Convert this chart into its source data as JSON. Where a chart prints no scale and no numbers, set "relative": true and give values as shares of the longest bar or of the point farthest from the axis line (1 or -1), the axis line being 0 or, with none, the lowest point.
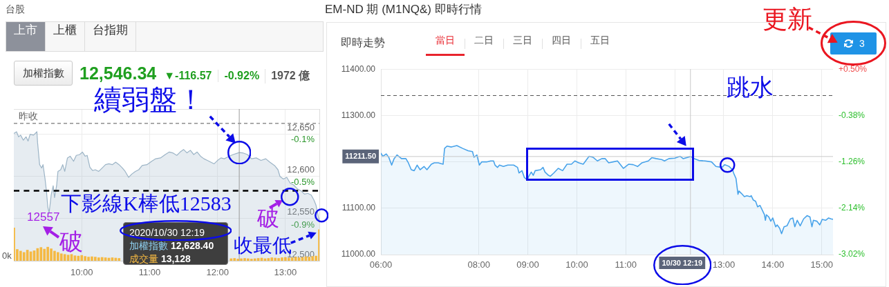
{
  "chart_data": [
    {
      "type": "area",
      "x": [
        9.0,
        9.04,
        9.07,
        9.1,
        9.14,
        9.18,
        9.21,
        9.24,
        9.29,
        9.34,
        9.35,
        9.38,
        9.41,
        9.43,
        9.46,
        9.48,
        9.5,
        9.52,
        9.55,
        9.58,
        9.6,
        9.63,
        9.65,
        9.69,
        9.72,
        9.75,
        9.79,
        9.83,
        9.88,
        9.92,
        9.97,
        10.01,
        10.05,
        10.08,
        10.12,
        10.16,
        10.2,
        10.25,
        10.3,
        10.35,
        10.4,
        10.45,
        10.5,
        10.55,
        10.6,
        10.64,
        10.69,
        10.74,
        10.79,
        10.84,
        10.89,
        10.96,
        11.03,
        11.09,
        11.16,
        11.23,
        11.29,
        11.34,
        11.4,
        11.45,
        11.5,
        11.55,
        11.6,
        11.65,
        11.7,
        11.75,
        11.8,
        11.85,
        11.9,
        11.95,
        12.0,
        12.05,
        12.1,
        12.17,
        12.23,
        12.32,
        12.37,
        12.44,
        12.5,
        12.57,
        12.64,
        12.71,
        12.77,
        12.84,
        12.89,
        12.92,
        12.97,
        13.02,
        13.07,
        13.12,
        13.18,
        13.23,
        13.28,
        13.33,
        13.38,
        13.42,
        13.45,
        13.5
      ],
      "values": [
        12651,
        12653,
        12647,
        12649,
        12643,
        12647,
        12642,
        12650,
        12649,
        12653,
        12640,
        12614,
        12610,
        12614,
        12597,
        12583,
        12564,
        12557,
        12578,
        12589,
        12575,
        12589,
        12606,
        12608,
        12614,
        12606,
        12622,
        12624,
        12618,
        12625,
        12626,
        12629,
        12624,
        12625,
        12611,
        12607,
        12608,
        12606,
        12610,
        12614,
        12615,
        12614,
        12617,
        12614,
        12610,
        12606,
        12599,
        12603,
        12606,
        12608,
        12613,
        12614,
        12618,
        12621,
        12622,
        12626,
        12629,
        12628,
        12625,
        12629,
        12632,
        12628,
        12631,
        12626,
        12629,
        12624,
        12621,
        12619,
        12617,
        12615,
        12619,
        12622,
        12621,
        12624,
        12626,
        12628.4,
        12628,
        12626,
        12621,
        12622,
        12619,
        12621,
        12617,
        12613,
        12608,
        12600,
        12597,
        12599,
        12592,
        12590,
        12585,
        12583,
        12579,
        12580,
        12578,
        12572,
        12566,
        12546.34
      ],
      "color": "#9cb4c6",
      "xlim": [
        9,
        13.5
      ],
      "xticks": [
        {
          "value": 10,
          "label": "10:00"
        },
        {
          "value": 11,
          "label": "11:00"
        },
        {
          "value": 12,
          "label": "12:00"
        },
        {
          "value": 13,
          "label": "13:00"
        }
      ],
      "ylim": [
        12500,
        12680
      ],
      "yticks": [
        {
          "value": 12500,
          "label": "12,500"
        },
        {
          "value": 12550,
          "label": "12,550"
        },
        {
          "value": 12600,
          "label": "12,600"
        },
        {
          "value": 12650,
          "label": "12,650"
        }
      ],
      "y2lim": [
        -1.29,
        0.13
      ],
      "y2ticks": [
        {
          "value": -0.9,
          "label": "-0.9%"
        },
        {
          "value": -0.5,
          "label": "-0.5%"
        },
        {
          "value": -0.1,
          "label": "-0.1%"
        }
      ],
      "grid": true,
      "ref_lines": [
        {
          "axis": "y",
          "value": 12662.91,
          "label": "昨收",
          "line_style": "dashed",
          "color": "#555555"
        },
        {
          "axis": "y",
          "value": 12583,
          "label": "下影線K棒低12583",
          "line_style": "dashed",
          "color": "#000000"
        },
        {
          "axis": "x",
          "value": 12.32,
          "color": "#999999"
        }
      ],
      "annotations": [
        "台股",
        "上市",
        "上櫃",
        "台指期",
        "加權指數",
        "12,546.34",
        "▼-116.57",
        "-0.92%",
        "1972 億",
        "2020/10/30 12:19",
        "加權指數 12,628.40",
        "成交量 13,128",
        {
          "text": "續弱盤！",
          "x": 12.32,
          "y": 12628.4
        },
        {
          "text": "12557",
          "x": 9.52,
          "y": 12557
        },
        {
          "text": "破",
          "x": 9.52,
          "y": 12557
        },
        {
          "text": "破",
          "x": 13.11,
          "y": 12588
        },
        {
          "text": "收最低",
          "x": 13.5,
          "y": 12546.34
        }
      ]
    },
    {
      "type": "bar",
      "relative": true,
      "tick_labels": false,
      "color": "#f5b942",
      "xlim": [
        9,
        13.5
      ],
      "x": [
        9.0,
        9.05,
        9.1,
        9.15,
        9.2,
        9.25,
        9.3,
        9.35,
        9.4,
        9.45,
        9.5,
        9.55,
        9.6,
        9.65,
        9.7,
        9.75,
        9.8,
        9.85,
        9.9,
        9.95,
        10.0,
        10.05,
        10.1,
        10.15,
        10.2,
        10.25,
        10.3,
        10.35,
        10.4,
        10.45,
        10.5,
        10.55,
        10.6,
        10.65,
        10.7,
        10.75,
        10.8,
        10.85,
        10.9,
        10.95,
        11.0,
        11.05,
        11.1,
        11.15,
        11.2,
        11.25,
        11.3,
        11.35,
        11.4,
        11.45,
        11.5,
        11.55,
        11.6,
        11.65,
        11.7,
        11.75,
        11.8,
        11.85,
        11.9,
        11.95,
        12.0,
        12.05,
        12.1,
        12.15,
        12.2,
        12.25,
        12.3,
        12.35,
        12.4,
        12.45,
        12.5,
        12.55,
        12.6,
        12.65,
        12.7,
        12.75,
        12.8,
        12.85,
        12.9,
        12.95,
        13.0,
        13.05,
        13.1,
        13.15,
        13.2,
        13.25,
        13.3,
        13.35,
        13.4,
        13.45,
        13.5
      ],
      "values": [
        1,
        0.35,
        0.3,
        0.26,
        0.33,
        0.28,
        0.31,
        0.38,
        0.41,
        0.36,
        0.42,
        0.37,
        0.3,
        0.26,
        0.22,
        0.2,
        0.18,
        0.2,
        0.16,
        0.15,
        0.17,
        0.14,
        0.12,
        0.13,
        0.12,
        0.1,
        0.11,
        0.1,
        0.09,
        0.1,
        0.09,
        0.08,
        null,
        null,
        null,
        null,
        null,
        null,
        null,
        null,
        null,
        null,
        null,
        null,
        null,
        null,
        null,
        null,
        null,
        null,
        null,
        null,
        null,
        null,
        null,
        null,
        null,
        null,
        null,
        null,
        null,
        null,
        null,
        null,
        0.07,
        0.08,
        0.06,
        0.07,
        0.08,
        0.07,
        0.06,
        0.07,
        0.08,
        0.09,
        0.07,
        0.08,
        0.1,
        0.09,
        0.08,
        0.1,
        0.11,
        0.09,
        0.1,
        0.12,
        0.1,
        0.11,
        0.13,
        0.12,
        0.14,
        0.15,
        0.95
      ],
      "annotations": [
        "0k"
      ]
    },
    {
      "type": "area",
      "title": "EM-ND 期 (M1NQ&) 即時行情",
      "x": [
        6.0,
        6.04,
        6.11,
        6.16,
        6.22,
        6.27,
        6.33,
        6.42,
        6.51,
        6.56,
        6.62,
        6.68,
        6.74,
        6.8,
        6.88,
        6.94,
        7.03,
        7.09,
        7.17,
        7.27,
        7.3,
        7.35,
        7.44,
        7.55,
        7.67,
        7.78,
        7.87,
        7.9,
        7.96,
        8.01,
        8.06,
        8.17,
        8.24,
        8.3,
        8.33,
        8.38,
        8.42,
        8.5,
        8.59,
        8.71,
        8.79,
        8.82,
        8.88,
        8.93,
        8.99,
        9.02,
        9.07,
        9.11,
        9.15,
        9.26,
        9.31,
        9.35,
        9.42,
        9.46,
        9.53,
        9.62,
        9.71,
        9.8,
        9.89,
        9.96,
        10.04,
        10.13,
        10.18,
        10.25,
        10.33,
        10.42,
        10.51,
        10.58,
        10.65,
        10.74,
        10.83,
        10.95,
        11.06,
        11.15,
        11.24,
        11.33,
        11.46,
        11.53,
        11.62,
        11.73,
        11.79,
        11.88,
        12.0,
        12.11,
        12.17,
        12.32,
        12.4,
        12.49,
        12.62,
        12.75,
        12.84,
        12.96,
        13.02,
        13.11,
        13.18,
        13.2,
        13.25,
        13.29,
        13.31,
        13.36,
        13.42,
        13.47,
        13.54,
        13.56,
        13.6,
        13.65,
        13.69,
        13.74,
        13.83,
        13.85,
        13.87,
        13.92,
        13.96,
        14.0,
        14.06,
        14.09,
        14.14,
        14.18,
        14.23,
        14.29,
        14.36,
        14.41,
        14.45,
        14.5,
        14.56,
        14.63,
        14.7,
        14.76,
        14.8,
        14.83,
        14.9,
        14.96,
        15.01,
        15.08,
        15.14,
        15.19,
        15.23
      ],
      "values": [
        11219,
        11212,
        11217,
        11210,
        11193,
        11207,
        11215,
        11207,
        11207,
        11198,
        11183,
        11181,
        11193,
        11183,
        11190,
        11183,
        11195,
        11198,
        11198,
        11195,
        11229,
        11234,
        11232,
        11235,
        11229,
        11224,
        11222,
        11210,
        11215,
        11193,
        11200,
        11200,
        11202,
        11202,
        11193,
        11188,
        11193,
        11190,
        11193,
        11193,
        11188,
        11176,
        11181,
        11166,
        11161,
        11169,
        11178,
        11171,
        11181,
        11183,
        11188,
        11178,
        11171,
        11169,
        11176,
        11186,
        11181,
        11195,
        11195,
        11202,
        11198,
        11195,
        11202,
        11212,
        11210,
        11202,
        11207,
        11207,
        11198,
        11200,
        11202,
        11186,
        11195,
        11194,
        11190,
        11198,
        11202,
        11209,
        11207,
        11205,
        11202,
        11207,
        11208,
        11212,
        11207,
        11211.5,
        11207,
        11203,
        11202,
        11200,
        11190,
        11188,
        11194,
        11190,
        11183,
        11176,
        11164,
        11130,
        11137,
        11132,
        11125,
        11127,
        11125,
        11127,
        11118,
        11115,
        11103,
        11106,
        11086,
        11074,
        11086,
        11081,
        11072,
        11079,
        11060,
        11064,
        11057,
        11045,
        11060,
        11062,
        11077,
        11079,
        11060,
        11074,
        11062,
        11077,
        11084,
        11081,
        11060,
        11074,
        11072,
        11064,
        11076,
        11074,
        11079,
        11077,
        11076
      ],
      "color": "#48a3ea",
      "xlim": [
        6,
        15.23
      ],
      "xticks": [
        {
          "value": 6,
          "label": "06:00"
        },
        {
          "value": 8,
          "label": "08:00"
        },
        {
          "value": 9,
          "label": "09:00"
        },
        {
          "value": 10,
          "label": "10:00"
        },
        {
          "value": 11,
          "label": "11:00"
        },
        {
          "value": 12,
          "label": null
        },
        {
          "value": 13,
          "label": "13:00"
        },
        {
          "value": 14,
          "label": "14:00"
        },
        {
          "value": 15,
          "label": "15:00"
        }
      ],
      "ylim": [
        11000,
        11400
      ],
      "yticks": [
        {
          "value": 11000,
          "label": "11000.00"
        },
        {
          "value": 11100,
          "label": "11100.00"
        },
        {
          "value": 11200,
          "label": null
        },
        {
          "value": 11300,
          "label": "11300.00"
        },
        {
          "value": 11400,
          "label": "11400.00"
        }
      ],
      "y2lim": [
        -3.02,
        0.5
      ],
      "y2ticks": [
        {
          "value": 0.5,
          "label": "+0.50%"
        },
        {
          "value": -0.38,
          "label": "-0.38%"
        },
        {
          "value": -1.26,
          "label": "-1.26%"
        },
        {
          "value": -2.14,
          "label": "-2.14%"
        },
        {
          "value": -3.02,
          "label": "-3.02%"
        }
      ],
      "grid": true,
      "ref_lines": [
        {
          "axis": "y",
          "value": 11343,
          "line_style": "dashed",
          "color": "#555555"
        },
        {
          "axis": "y",
          "value": 11211.5,
          "label": "11211.50",
          "color": "#c8c8c8"
        },
        {
          "axis": "x",
          "value": 12.32,
          "label": "10/30 12:19",
          "color": "#c8c8c8"
        }
      ],
      "annotations": [
        "即時走勢",
        "當日",
        "二日",
        "三日",
        "四日",
        "五日",
        "3",
        "更新",
        {
          "text": "跳水",
          "x": 13.08,
          "y": 11190
        }
      ]
    }
  ]
}
